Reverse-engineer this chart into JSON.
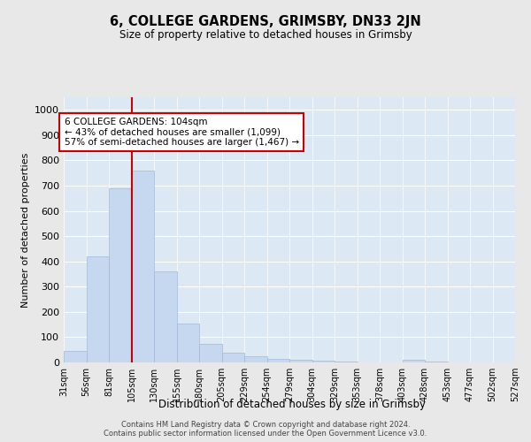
{
  "title": "6, COLLEGE GARDENS, GRIMSBY, DN33 2JN",
  "subtitle": "Size of property relative to detached houses in Grimsby",
  "xlabel": "Distribution of detached houses by size in Grimsby",
  "ylabel": "Number of detached properties",
  "bin_labels": [
    "31sqm",
    "56sqm",
    "81sqm",
    "105sqm",
    "130sqm",
    "155sqm",
    "180sqm",
    "205sqm",
    "229sqm",
    "254sqm",
    "279sqm",
    "304sqm",
    "329sqm",
    "353sqm",
    "378sqm",
    "403sqm",
    "428sqm",
    "453sqm",
    "477sqm",
    "502sqm",
    "527sqm"
  ],
  "bar_heights": [
    47,
    420,
    690,
    760,
    360,
    155,
    75,
    37,
    25,
    15,
    10,
    7,
    5,
    0,
    0,
    10,
    5,
    0,
    0,
    0
  ],
  "bar_color": "#c5d8f0",
  "bar_edge_color": "#a0b8d8",
  "vline_x_index": 3,
  "vline_color": "#cc0000",
  "annotation_text": "6 COLLEGE GARDENS: 104sqm\n← 43% of detached houses are smaller (1,099)\n57% of semi-detached houses are larger (1,467) →",
  "annotation_box_color": "#ffffff",
  "annotation_box_edge": "#cc0000",
  "ylim": [
    0,
    1050
  ],
  "yticks": [
    0,
    100,
    200,
    300,
    400,
    500,
    600,
    700,
    800,
    900,
    1000
  ],
  "background_color": "#dce9f5",
  "grid_color": "#ffffff",
  "fig_bg_color": "#e8e8e8",
  "footer_line1": "Contains HM Land Registry data © Crown copyright and database right 2024.",
  "footer_line2": "Contains public sector information licensed under the Open Government Licence v3.0."
}
